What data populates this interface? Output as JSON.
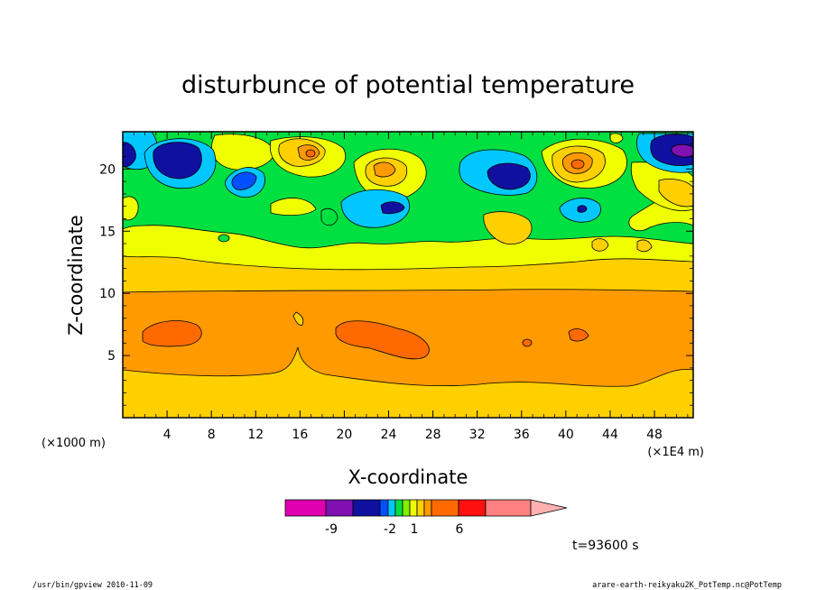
{
  "chart_data": {
    "type": "heatmap",
    "title": "disturbunce of potential temperature",
    "xlabel": "X-coordinate",
    "ylabel": "Z-coordinate",
    "x_unit": "(×1E4 m)",
    "y_unit": "(×1000 m)",
    "xlim": [
      0,
      51.5
    ],
    "ylim": [
      0,
      23
    ],
    "x_ticks": [
      4,
      8,
      12,
      16,
      20,
      24,
      28,
      32,
      36,
      40,
      44,
      48
    ],
    "y_ticks": [
      5,
      10,
      15,
      20
    ],
    "colorbar": {
      "colors": [
        "#e000b0",
        "#8010b0",
        "#1010a0",
        "#0050ff",
        "#00c8ff",
        "#00e040",
        "#80f000",
        "#f0ff00",
        "#ffd000",
        "#ff9a00",
        "#ff6a00",
        "#ff1010",
        "#ff8080",
        "#ffb0b0"
      ],
      "tick_labels": [
        "-9",
        "-2",
        "1",
        "6"
      ]
    },
    "time_label": "t=93600 s",
    "footer_left": "/usr/bin/gpview  2010-11-09",
    "footer_right": "arare-earth-reikyaku2K_PotTemp.nc@PotTemp"
  }
}
